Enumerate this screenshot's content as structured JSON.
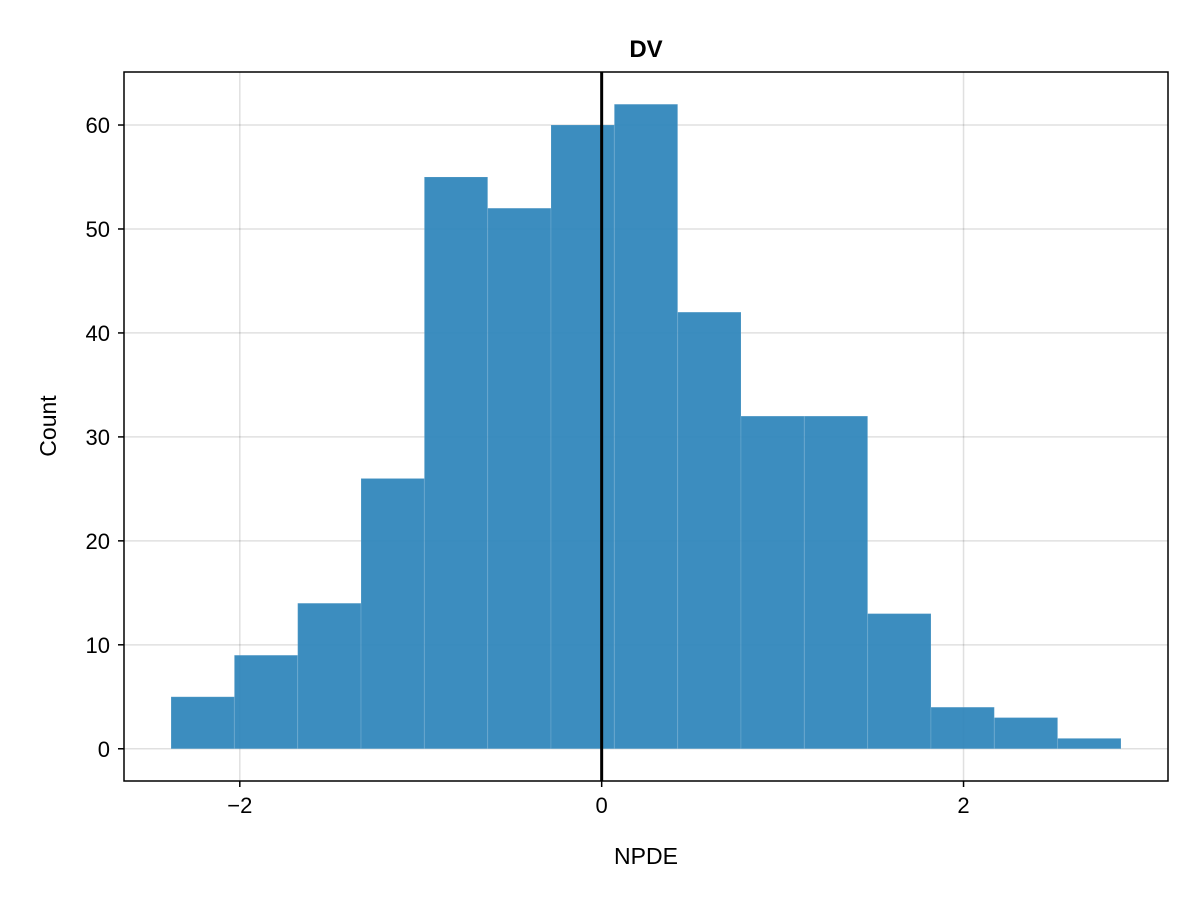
{
  "chart_data": {
    "type": "bar",
    "title": "DV",
    "xlabel": "NPDE",
    "ylabel": "Count",
    "bin_edges": [
      -2.38,
      -2.03,
      -1.68,
      -1.33,
      -0.98,
      -0.63,
      -0.28,
      0.07,
      0.42,
      0.77,
      1.12,
      1.47,
      1.82,
      2.17,
      2.52,
      2.87
    ],
    "values": [
      5,
      9,
      14,
      26,
      55,
      52,
      60,
      62,
      42,
      32,
      32,
      13,
      4,
      3,
      1
    ],
    "bar_color": "#2b83ba",
    "reference_line_x": 0,
    "reference_line_color": "#000000",
    "xlim": [
      -2.64,
      3.13
    ],
    "ylim": [
      -3.1,
      65.1
    ],
    "xticks": [
      -2,
      0,
      2
    ],
    "xtick_labels": [
      "−2",
      "0",
      "2"
    ],
    "yticks": [
      0,
      10,
      20,
      30,
      40,
      50,
      60
    ],
    "ytick_labels": [
      "0",
      "10",
      "20",
      "30",
      "40",
      "50",
      "60"
    ],
    "grid": true
  }
}
